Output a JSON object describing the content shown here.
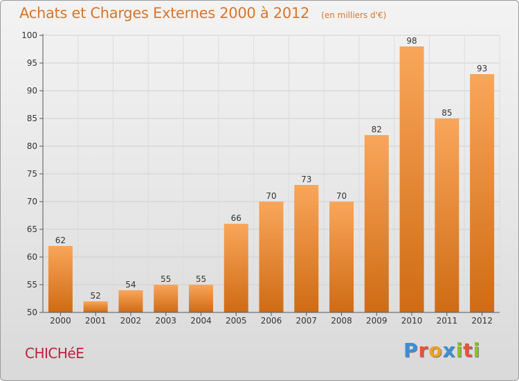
{
  "title": "Achats et Charges Externes 2000 à 2012",
  "subtitle": "(en milliers d'€)",
  "location": "CHICHéE",
  "brand": {
    "text": "Proxiti",
    "letter_colors": [
      "#3a8fd8",
      "#e8533a",
      "#f0a020",
      "#3a8fd8",
      "#8fbf2a",
      "#e8533a",
      "#8fbf2a"
    ]
  },
  "colors": {
    "bar_top": "#f9a65a",
    "bar_bottom": "#cf6b14",
    "title": "#d9752a",
    "location": "#c0203f"
  },
  "chart_data": {
    "type": "bar",
    "categories": [
      "2000",
      "2001",
      "2002",
      "2003",
      "2004",
      "2005",
      "2006",
      "2007",
      "2008",
      "2009",
      "2010",
      "2011",
      "2012"
    ],
    "values": [
      62,
      52,
      54,
      55,
      55,
      66,
      70,
      73,
      70,
      82,
      98,
      85,
      93
    ],
    "ylim": [
      50,
      100
    ],
    "yticks": [
      50,
      55,
      60,
      65,
      70,
      75,
      80,
      85,
      90,
      95,
      100
    ],
    "grid": true,
    "legend": "none",
    "xlabel": "",
    "ylabel": ""
  }
}
